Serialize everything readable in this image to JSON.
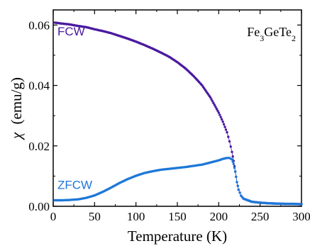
{
  "chart_data": {
    "type": "scatter",
    "title": "",
    "xlabel": "Temperature (K)",
    "ylabel_symbol": "χ",
    "ylabel_unit": "(emu/g)",
    "xlim": [
      0,
      300
    ],
    "ylim": [
      0,
      0.065
    ],
    "xticks": [
      "0",
      "50",
      "100",
      "150",
      "200",
      "250",
      "300"
    ],
    "yticks": [
      "0.00",
      "0.02",
      "0.04",
      "0.06"
    ],
    "grid": false,
    "annotation": {
      "text_main": "Fe",
      "sub1": "3",
      "text_mid": "GeTe",
      "sub2": "2"
    },
    "series": [
      {
        "name": "FCW",
        "color": "#4a1aa0",
        "points": [
          [
            2,
            0.0608
          ],
          [
            10,
            0.0605
          ],
          [
            20,
            0.0602
          ],
          [
            30,
            0.0597
          ],
          [
            40,
            0.0593
          ],
          [
            50,
            0.0586
          ],
          [
            60,
            0.058
          ],
          [
            70,
            0.0573
          ],
          [
            80,
            0.0564
          ],
          [
            90,
            0.0555
          ],
          [
            100,
            0.0545
          ],
          [
            110,
            0.0534
          ],
          [
            120,
            0.0522
          ],
          [
            130,
            0.0509
          ],
          [
            140,
            0.0495
          ],
          [
            150,
            0.0477
          ],
          [
            160,
            0.0456
          ],
          [
            170,
            0.043
          ],
          [
            180,
            0.04
          ],
          [
            190,
            0.036
          ],
          [
            200,
            0.031
          ],
          [
            205,
            0.028
          ],
          [
            210,
            0.0245
          ],
          [
            213,
            0.0215
          ],
          [
            216,
            0.018
          ],
          [
            218,
            0.015
          ],
          [
            220,
            0.0115
          ],
          [
            222,
            0.008
          ],
          [
            224,
            0.0055
          ],
          [
            227,
            0.0035
          ],
          [
            230,
            0.0025
          ],
          [
            240,
            0.0015
          ],
          [
            250,
            0.0012
          ],
          [
            260,
            0.001
          ],
          [
            270,
            0.0009
          ],
          [
            280,
            0.0008
          ],
          [
            290,
            0.0008
          ],
          [
            300,
            0.0007
          ]
        ]
      },
      {
        "name": "ZFCW",
        "color": "#1e78d8",
        "points": [
          [
            2,
            0.002
          ],
          [
            10,
            0.002
          ],
          [
            20,
            0.0021
          ],
          [
            30,
            0.0023
          ],
          [
            40,
            0.0028
          ],
          [
            50,
            0.0036
          ],
          [
            60,
            0.0048
          ],
          [
            70,
            0.0062
          ],
          [
            80,
            0.0077
          ],
          [
            90,
            0.009
          ],
          [
            100,
            0.0101
          ],
          [
            110,
            0.011
          ],
          [
            120,
            0.0116
          ],
          [
            130,
            0.0121
          ],
          [
            140,
            0.0124
          ],
          [
            150,
            0.0127
          ],
          [
            160,
            0.013
          ],
          [
            170,
            0.0134
          ],
          [
            180,
            0.0138
          ],
          [
            190,
            0.0145
          ],
          [
            200,
            0.0152
          ],
          [
            205,
            0.0157
          ],
          [
            210,
            0.016
          ],
          [
            213,
            0.016
          ],
          [
            216,
            0.0155
          ],
          [
            218,
            0.014
          ],
          [
            220,
            0.0115
          ],
          [
            222,
            0.008
          ],
          [
            224,
            0.0055
          ],
          [
            227,
            0.0035
          ],
          [
            230,
            0.0025
          ],
          [
            240,
            0.0015
          ],
          [
            250,
            0.0012
          ],
          [
            260,
            0.001
          ],
          [
            270,
            0.0009
          ],
          [
            280,
            0.0008
          ],
          [
            290,
            0.0008
          ],
          [
            300,
            0.0007
          ]
        ]
      }
    ]
  }
}
